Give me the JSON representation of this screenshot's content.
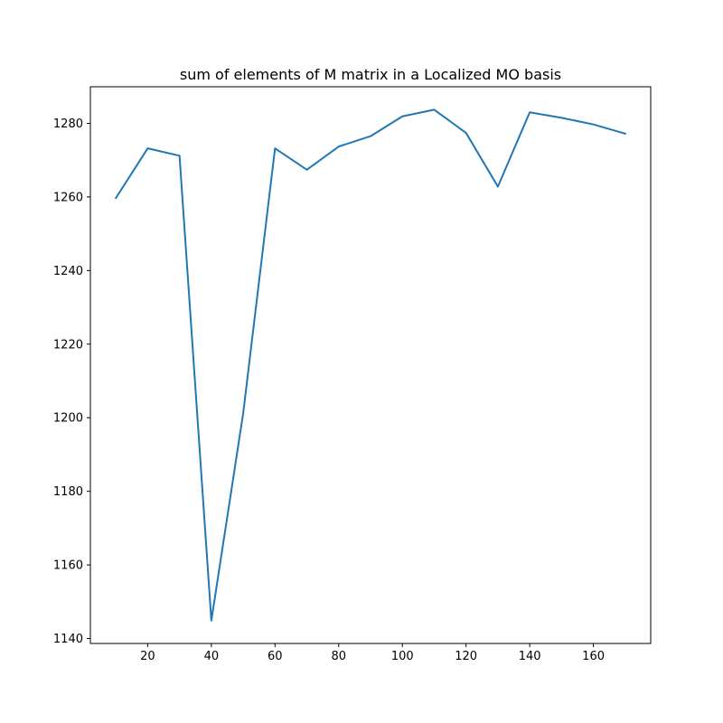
{
  "chart_data": {
    "type": "line",
    "title": "sum of elements of M matrix in a Localized MO basis",
    "xlabel": "",
    "ylabel": "",
    "x": [
      10,
      20,
      30,
      40,
      50,
      60,
      70,
      80,
      90,
      100,
      110,
      120,
      130,
      140,
      150,
      160,
      170
    ],
    "series": [
      {
        "name": "",
        "values": [
          1259.7,
          1273.2,
          1271.2,
          1144.9,
          1201.2,
          1273.2,
          1267.4,
          1273.7,
          1276.5,
          1281.9,
          1283.7,
          1277.4,
          1262.8,
          1283.0,
          1281.5,
          1279.7,
          1277.2
        ],
        "color": "#1f77b4"
      }
    ],
    "xlim": [
      2.0,
      178.0
    ],
    "ylim": [
      1138.66,
      1289.94
    ],
    "xticks": [
      20,
      40,
      60,
      80,
      100,
      120,
      140,
      160
    ],
    "xtick_labels": [
      "20",
      "40",
      "60",
      "80",
      "100",
      "120",
      "140",
      "160"
    ],
    "yticks": [
      1140,
      1160,
      1180,
      1200,
      1220,
      1240,
      1260,
      1280
    ],
    "ytick_labels": [
      "1140",
      "1160",
      "1180",
      "1200",
      "1220",
      "1240",
      "1260",
      "1280"
    ],
    "grid": false,
    "legend": "none"
  }
}
